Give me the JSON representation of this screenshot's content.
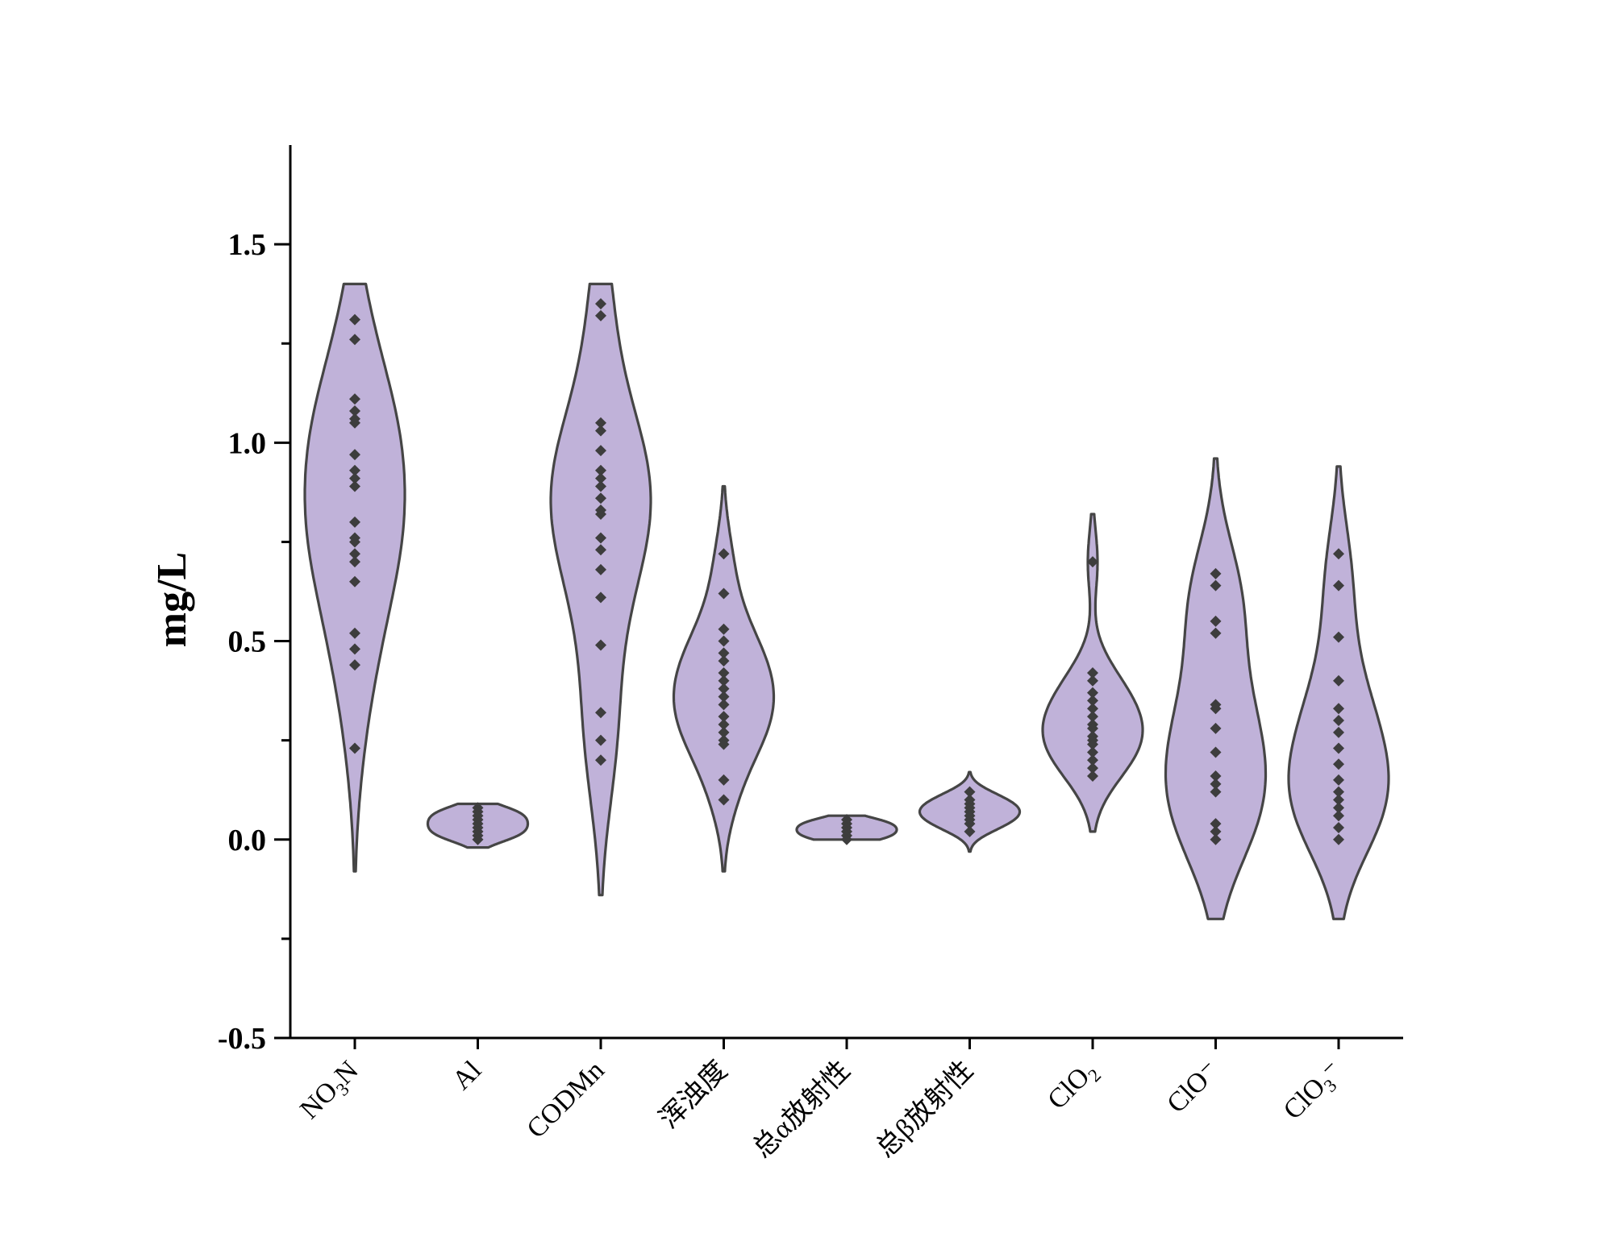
{
  "chart_data": {
    "type": "violin",
    "ylabel": "mg/L",
    "ylim": [
      -0.5,
      1.75
    ],
    "yticks": [
      -0.5,
      0.0,
      0.5,
      1.0,
      1.5
    ],
    "ytick_labels": [
      "-0.5",
      "0.0",
      "0.5",
      "1.0",
      "1.5"
    ],
    "fill_color": "#c0b2d9",
    "stroke_color": "#454545",
    "point_color": "#3d3d3d",
    "series": [
      {
        "category": "NO3N",
        "label": {
          "pre": "NO",
          "sub": "3",
          "post": "N"
        },
        "extent": [
          -0.08,
          1.4
        ],
        "points": [
          1.31,
          1.26,
          1.11,
          1.08,
          1.06,
          1.05,
          0.97,
          0.93,
          0.91,
          0.89,
          0.8,
          0.76,
          0.75,
          0.72,
          0.7,
          0.65,
          0.52,
          0.48,
          0.44,
          0.23
        ]
      },
      {
        "category": "Al",
        "label": {
          "pre": "Al",
          "sub": "",
          "post": ""
        },
        "extent": [
          -0.02,
          0.09
        ],
        "points": [
          0.08,
          0.07,
          0.06,
          0.05,
          0.04,
          0.03,
          0.02,
          0.01,
          0.0
        ]
      },
      {
        "category": "CODMn",
        "label": {
          "pre": "CODMn",
          "sub": "",
          "post": ""
        },
        "extent": [
          -0.14,
          1.4
        ],
        "points": [
          1.35,
          1.32,
          1.05,
          1.03,
          0.98,
          0.93,
          0.91,
          0.89,
          0.86,
          0.83,
          0.82,
          0.76,
          0.73,
          0.68,
          0.61,
          0.49,
          0.32,
          0.25,
          0.2
        ]
      },
      {
        "category": "浑浊度",
        "label": {
          "pre": "浑浊度",
          "sub": "",
          "post": ""
        },
        "extent": [
          -0.08,
          0.89
        ],
        "points": [
          0.72,
          0.62,
          0.53,
          0.5,
          0.47,
          0.45,
          0.42,
          0.4,
          0.38,
          0.36,
          0.34,
          0.31,
          0.29,
          0.27,
          0.25,
          0.24,
          0.15,
          0.1
        ]
      },
      {
        "category": "总α放射性",
        "label": {
          "pre": "总α放射性",
          "sub": "",
          "post": ""
        },
        "extent": [
          0.0,
          0.06
        ],
        "points": [
          0.05,
          0.04,
          0.03,
          0.02,
          0.01,
          0.0
        ]
      },
      {
        "category": "总β放射性",
        "label": {
          "pre": "总β放射性",
          "sub": "",
          "post": ""
        },
        "extent": [
          -0.03,
          0.17
        ],
        "points": [
          0.12,
          0.1,
          0.09,
          0.08,
          0.07,
          0.06,
          0.05,
          0.04,
          0.02
        ]
      },
      {
        "category": "ClO2",
        "label": {
          "pre": "ClO",
          "sub": "2",
          "post": ""
        },
        "extent": [
          0.02,
          0.82
        ],
        "points": [
          0.7,
          0.42,
          0.4,
          0.37,
          0.35,
          0.33,
          0.31,
          0.29,
          0.28,
          0.26,
          0.25,
          0.24,
          0.22,
          0.2,
          0.18,
          0.16
        ]
      },
      {
        "category": "ClO-",
        "label": {
          "pre": "ClO",
          "sub": "",
          "post": "⁻"
        },
        "extent": [
          -0.2,
          0.96
        ],
        "points": [
          0.67,
          0.64,
          0.55,
          0.52,
          0.34,
          0.33,
          0.28,
          0.22,
          0.16,
          0.14,
          0.12,
          0.04,
          0.02,
          0.0
        ]
      },
      {
        "category": "ClO3-",
        "label": {
          "pre": "ClO",
          "sub": "3",
          "post": "⁻"
        },
        "extent": [
          -0.2,
          0.94
        ],
        "points": [
          0.72,
          0.64,
          0.51,
          0.4,
          0.33,
          0.3,
          0.27,
          0.23,
          0.19,
          0.15,
          0.12,
          0.1,
          0.08,
          0.06,
          0.03,
          0.0
        ]
      }
    ]
  }
}
